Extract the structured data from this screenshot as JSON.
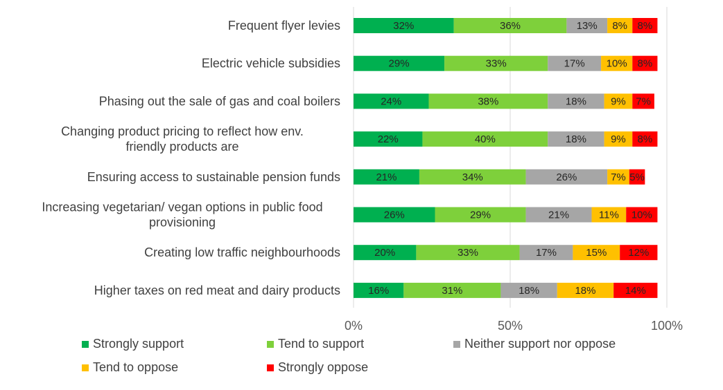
{
  "chart_data": {
    "type": "bar",
    "orientation": "horizontal",
    "stacked": true,
    "categories": [
      "Frequent flyer levies",
      "Electric vehicle subsidies",
      "Phasing out the sale of gas and coal boilers",
      "Changing product pricing to reflect how env. friendly products are",
      "Ensuring access to sustainable pension funds",
      "Increasing vegetarian/ vegan options in public food provisioning",
      "Creating low traffic neighbourhoods",
      "Higher taxes on red meat and dairy products"
    ],
    "series": [
      {
        "name": "Strongly support",
        "color": "#00B050",
        "values": [
          32,
          29,
          24,
          22,
          21,
          26,
          20,
          16
        ]
      },
      {
        "name": "Tend to support",
        "color": "#7ED03B",
        "values": [
          36,
          33,
          38,
          40,
          34,
          29,
          33,
          31
        ]
      },
      {
        "name": "Neither support nor oppose",
        "color": "#A6A6A6",
        "values": [
          13,
          17,
          18,
          18,
          26,
          21,
          17,
          18
        ]
      },
      {
        "name": "Tend to oppose",
        "color": "#FFC000",
        "values": [
          8,
          10,
          9,
          9,
          7,
          11,
          15,
          18
        ]
      },
      {
        "name": "Strongly oppose",
        "color": "#FF0000",
        "values": [
          8,
          8,
          7,
          8,
          5,
          10,
          12,
          14
        ]
      }
    ],
    "value_suffix": "%",
    "xlim": [
      0,
      100
    ],
    "xticks": [
      "0%",
      "50%",
      "100%"
    ],
    "grid": true,
    "legend_position": "bottom",
    "title": "",
    "xlabel": "",
    "ylabel": ""
  }
}
